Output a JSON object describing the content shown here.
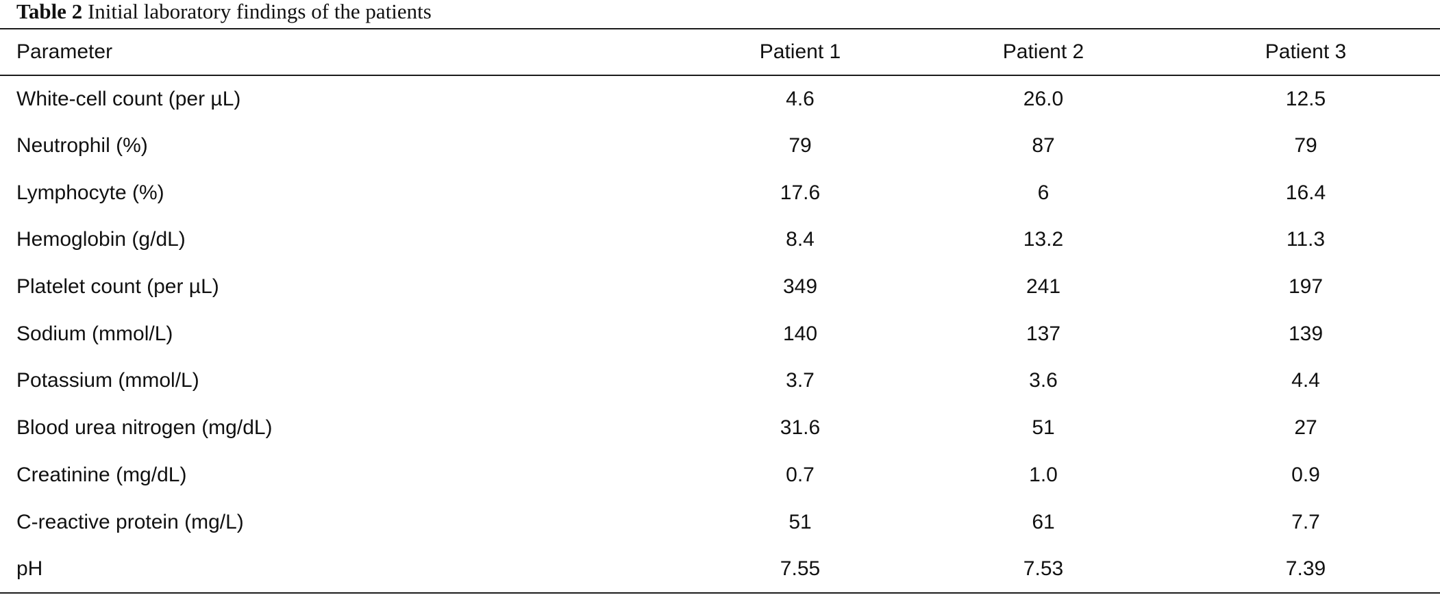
{
  "caption": {
    "label": "Table 2",
    "text": "Initial laboratory findings of the patients"
  },
  "table": {
    "headers": [
      "Parameter",
      "Patient 1",
      "Patient 2",
      "Patient 3"
    ],
    "rows": [
      [
        "White-cell count (per µL)",
        "4.6",
        "26.0",
        "12.5"
      ],
      [
        "Neutrophil (%)",
        "79",
        "87",
        "79"
      ],
      [
        "Lymphocyte (%)",
        "17.6",
        "6",
        "16.4"
      ],
      [
        "Hemoglobin (g/dL)",
        "8.4",
        "13.2",
        "11.3"
      ],
      [
        "Platelet count (per µL)",
        "349",
        "241",
        "197"
      ],
      [
        "Sodium (mmol/L)",
        "140",
        "137",
        "139"
      ],
      [
        "Potassium (mmol/L)",
        "3.7",
        "3.6",
        "4.4"
      ],
      [
        "Blood urea nitrogen (mg/dL)",
        "31.6",
        "51",
        "27"
      ],
      [
        "Creatinine (mg/dL)",
        "0.7",
        "1.0",
        "0.9"
      ],
      [
        "C-reactive protein (mg/L)",
        "51",
        "61",
        "7.7"
      ],
      [
        "pH",
        "7.55",
        "7.53",
        "7.39"
      ]
    ]
  }
}
